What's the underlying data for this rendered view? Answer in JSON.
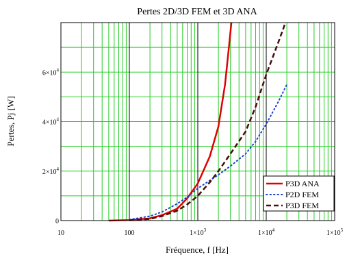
{
  "chart_data": {
    "type": "line",
    "title": "Pertes 2D/3D FEM et 3D ANA",
    "xlabel": "Fréquence, f [Hz]",
    "ylabel": "Pertes, Pj [W]",
    "xscale": "log",
    "xlim": [
      10,
      100000
    ],
    "ylim": [
      0,
      80000
    ],
    "x_ticks": [
      {
        "value": 10,
        "base": "10",
        "exp": ""
      },
      {
        "value": 100,
        "base": "100",
        "exp": ""
      },
      {
        "value": 1000,
        "base": "1×10",
        "exp": "3"
      },
      {
        "value": 10000,
        "base": "1×10",
        "exp": "4"
      },
      {
        "value": 100000,
        "base": "1×10",
        "exp": "5"
      }
    ],
    "y_ticks": [
      {
        "value": 0,
        "base": "0",
        "exp": ""
      },
      {
        "value": 20000,
        "base": "2×10",
        "exp": "4"
      },
      {
        "value": 40000,
        "base": "4×10",
        "exp": "4"
      },
      {
        "value": 60000,
        "base": "6×10",
        "exp": "4"
      }
    ],
    "grid": true,
    "grid_color": "#22cc22",
    "major_grid_color": "#000000",
    "legend_position": "bottom-right",
    "series": [
      {
        "name": "P3D ANA",
        "color": "#e00000",
        "style": "solid",
        "points": [
          [
            50,
            0
          ],
          [
            100,
            200
          ],
          [
            200,
            900
          ],
          [
            300,
            2200
          ],
          [
            500,
            4800
          ],
          [
            700,
            9000
          ],
          [
            1000,
            15000
          ],
          [
            1500,
            26000
          ],
          [
            2000,
            38000
          ],
          [
            2500,
            55000
          ],
          [
            2800,
            68000
          ],
          [
            3100,
            80000
          ]
        ]
      },
      {
        "name": "P2D FEM",
        "color": "#1a3fd6",
        "style": "dotted",
        "points": [
          [
            100,
            400
          ],
          [
            200,
            1800
          ],
          [
            300,
            3500
          ],
          [
            500,
            6800
          ],
          [
            700,
            9500
          ],
          [
            1000,
            13000
          ],
          [
            2000,
            18500
          ],
          [
            3000,
            22000
          ],
          [
            5000,
            27000
          ],
          [
            7000,
            32000
          ],
          [
            10000,
            39000
          ],
          [
            15000,
            48000
          ],
          [
            20000,
            55000
          ]
        ]
      },
      {
        "name": "P3D FEM",
        "color": "#4a0a0a",
        "style": "dashed",
        "points": [
          [
            100,
            100
          ],
          [
            200,
            700
          ],
          [
            300,
            1800
          ],
          [
            500,
            4000
          ],
          [
            700,
            6500
          ],
          [
            1000,
            10000
          ],
          [
            1500,
            15500
          ],
          [
            2000,
            20000
          ],
          [
            3000,
            27000
          ],
          [
            5000,
            36000
          ],
          [
            7000,
            46000
          ],
          [
            10000,
            59000
          ],
          [
            15000,
            72000
          ],
          [
            18000,
            78000
          ],
          [
            19000,
            80000
          ]
        ]
      }
    ]
  }
}
